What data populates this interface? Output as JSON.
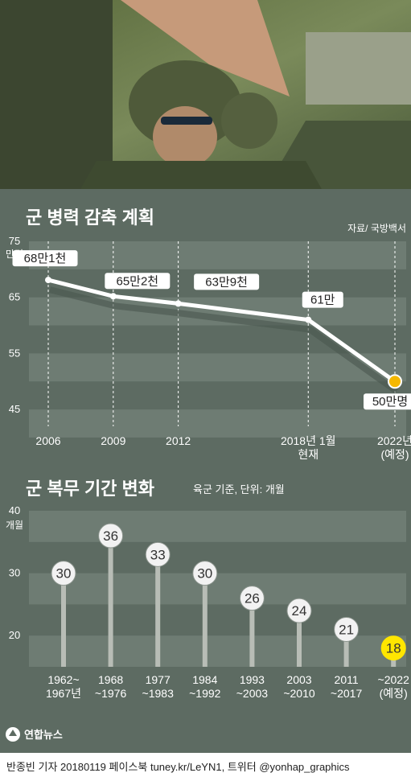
{
  "source": "자료/ 국방백서",
  "footer": "반종빈 기자 20180119 페이스북 tuney.kr/LeYN1, 트위터 @yonhap_graphics",
  "logo_text": "연합뉴스",
  "colors": {
    "panel": "#5d6b62",
    "band": "#6e7c73",
    "white": "#ffffff",
    "highlight": "#ffe600",
    "end_marker": "#f5b800"
  },
  "chart_data": [
    {
      "type": "line",
      "title": "군 병력 감축 계획",
      "ylabel": "만명",
      "yticks": [
        75,
        65,
        55,
        45
      ],
      "ylim": [
        42,
        75
      ],
      "x_labels": [
        "2006",
        "2009",
        "2012",
        "2018년 1월\n현재",
        "2022년\n(예정)"
      ],
      "x": [
        2006,
        2009,
        2012,
        2018,
        2022
      ],
      "values": [
        68.1,
        65.2,
        63.9,
        61,
        50
      ],
      "value_labels": [
        "68만1천",
        "65만2천",
        "63만9천",
        "61만",
        "50만명"
      ]
    },
    {
      "type": "bar",
      "title": "군 복무 기간 변화",
      "subtitle": "육군 기준, 단위: 개월",
      "ylabel": "개월",
      "yticks": [
        40,
        30,
        20
      ],
      "ylim": [
        15,
        40
      ],
      "categories": [
        "1962~\n1967년",
        "1968\n~1976",
        "1977\n~1983",
        "1984\n~1992",
        "1993\n~2003",
        "2003\n~2010",
        "2011\n~2017",
        "~2022\n(예정)"
      ],
      "values": [
        30,
        36,
        33,
        30,
        26,
        24,
        21,
        18
      ]
    }
  ]
}
